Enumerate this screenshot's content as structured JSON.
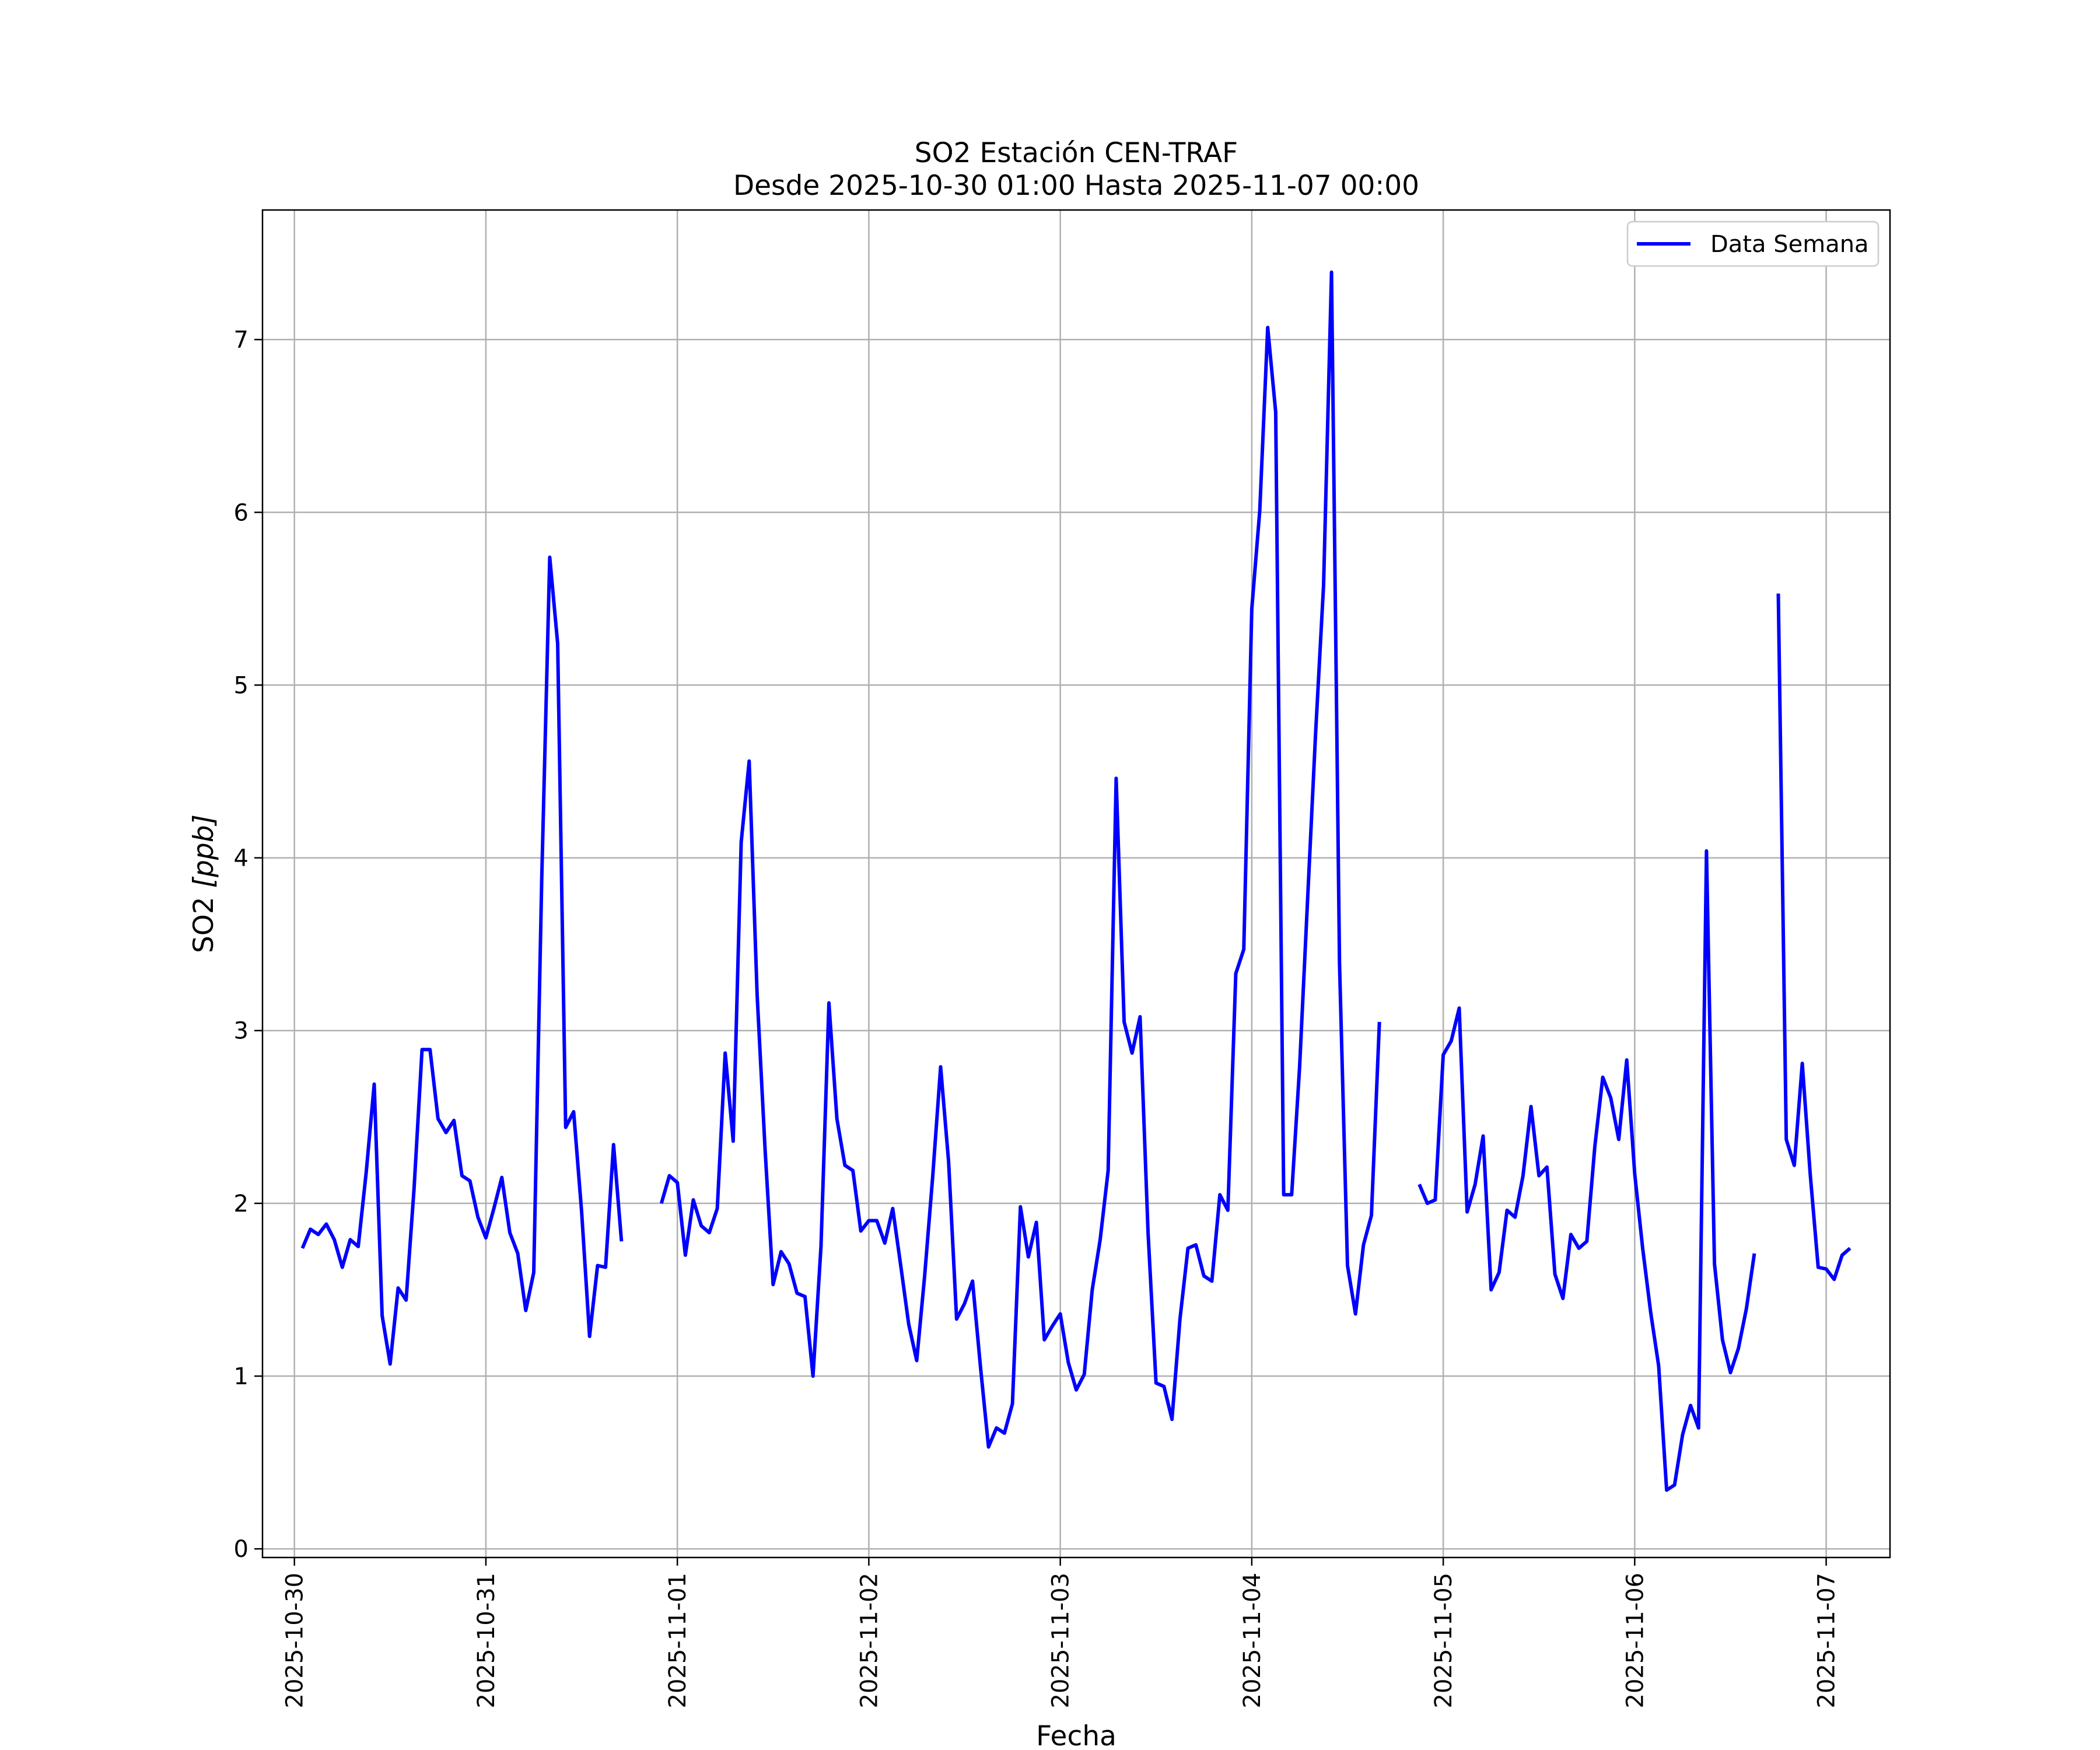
{
  "chart_data": {
    "type": "line",
    "title": "SO2 Estación CEN-TRAF",
    "subtitle": "Desde 2025-10-30 01:00 Hasta 2025-11-07 00:00",
    "xlabel": "Fecha",
    "ylabel_prefix": "SO2 ",
    "ylabel_unit": "[ppb]",
    "ylim": [
      -0.05,
      7.75
    ],
    "xlim": [
      "2025-10-29T20:00",
      "2025-11-07T08:00"
    ],
    "grid": true,
    "legend_position": "top-right",
    "x_ticks": [
      "2025-10-30",
      "2025-10-31",
      "2025-11-01",
      "2025-11-02",
      "2025-11-03",
      "2025-11-04",
      "2025-11-05",
      "2025-11-06",
      "2025-11-07"
    ],
    "y_ticks": [
      0,
      1,
      2,
      3,
      4,
      5,
      6,
      7
    ],
    "series": [
      {
        "name": "Data Semana",
        "color": "#0000ff",
        "start": "2025-10-30T01:00",
        "step_hours": 1,
        "values": [
          1.74,
          1.85,
          1.82,
          1.88,
          1.79,
          1.63,
          1.79,
          1.75,
          2.18,
          2.69,
          1.35,
          1.07,
          1.51,
          1.44,
          2.09,
          2.89,
          2.89,
          2.49,
          2.41,
          2.48,
          2.16,
          2.13,
          1.92,
          1.8,
          1.97,
          2.15,
          1.83,
          1.71,
          1.38,
          1.6,
          3.88,
          5.74,
          5.24,
          2.44,
          2.53,
          1.95,
          1.23,
          1.64,
          1.63,
          2.34,
          1.78,
          null,
          null,
          null,
          null,
          2.0,
          2.16,
          2.12,
          1.7,
          2.02,
          1.87,
          1.83,
          1.97,
          2.87,
          2.36,
          4.09,
          4.56,
          3.21,
          2.31,
          1.53,
          1.72,
          1.65,
          1.48,
          1.46,
          1.0,
          1.75,
          3.16,
          2.49,
          2.22,
          2.19,
          1.84,
          1.9,
          1.9,
          1.77,
          1.97,
          1.64,
          1.3,
          1.09,
          1.58,
          2.15,
          2.79,
          2.24,
          1.33,
          1.42,
          1.55,
          1.05,
          0.59,
          0.7,
          0.67,
          0.84,
          1.98,
          1.69,
          1.89,
          1.21,
          1.29,
          1.36,
          1.08,
          0.92,
          1.01,
          1.5,
          1.79,
          2.19,
          4.46,
          3.05,
          2.87,
          3.08,
          1.83,
          0.96,
          0.94,
          0.75,
          1.33,
          1.74,
          1.76,
          1.58,
          1.55,
          2.05,
          1.96,
          3.33,
          3.47,
          5.44,
          6.01,
          7.07,
          6.58,
          2.05,
          2.05,
          2.79,
          3.76,
          4.72,
          5.58,
          7.39,
          3.39,
          1.64,
          1.36,
          1.76,
          1.93,
          3.05,
          null,
          null,
          null,
          null,
          2.11,
          2.0,
          2.02,
          2.86,
          2.94,
          3.13,
          1.95,
          2.11,
          2.39,
          1.5,
          1.6,
          1.96,
          1.92,
          2.16,
          2.56,
          2.16,
          2.21,
          1.59,
          1.45,
          1.82,
          1.74,
          1.78,
          2.33,
          2.73,
          2.61,
          2.37,
          2.83,
          2.17,
          1.74,
          1.37,
          1.06,
          0.34,
          0.37,
          0.66,
          0.83,
          0.7,
          4.04,
          1.65,
          1.21,
          1.02,
          1.16,
          1.39,
          1.71,
          null,
          null,
          5.53,
          2.37,
          2.22,
          2.81,
          2.17,
          1.63,
          1.62,
          1.56,
          1.7,
          1.74
        ]
      }
    ]
  }
}
